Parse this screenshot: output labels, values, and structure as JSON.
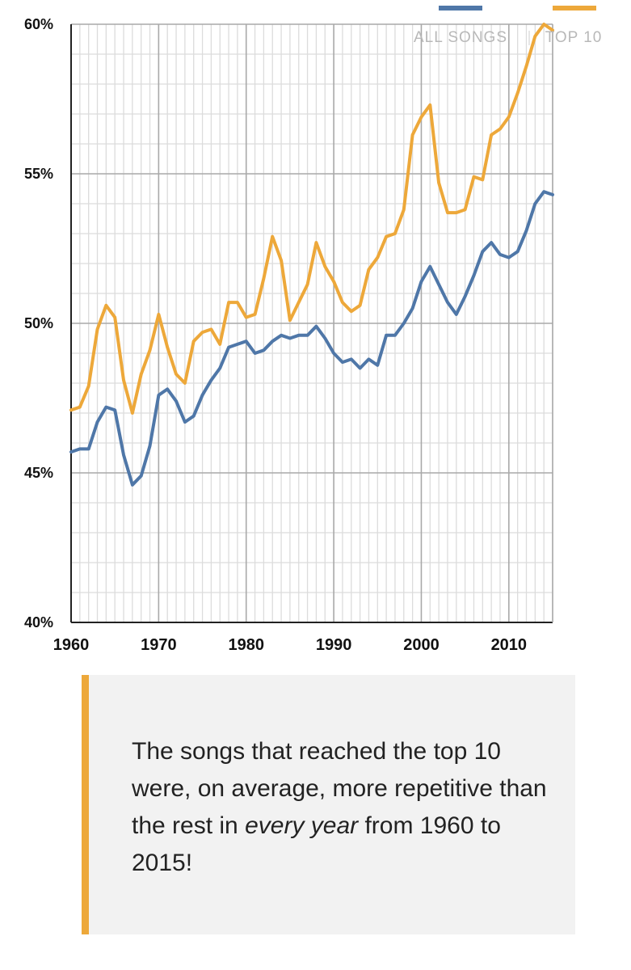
{
  "chart_data": {
    "type": "line",
    "title": "",
    "xlabel": "",
    "ylabel": "",
    "xlim": [
      1960,
      2015
    ],
    "ylim": [
      40,
      60
    ],
    "x_ticks": [
      1960,
      1970,
      1980,
      1990,
      2000,
      2010
    ],
    "x_tick_labels": [
      "1960",
      "1970",
      "1980",
      "1990",
      "2000",
      "2010"
    ],
    "y_ticks": [
      40,
      45,
      50,
      55,
      60
    ],
    "y_tick_labels": [
      "40%",
      "45%",
      "50%",
      "55%",
      "60%"
    ],
    "grid": true,
    "legend_position": "top-right",
    "x": [
      1960,
      1961,
      1962,
      1963,
      1964,
      1965,
      1966,
      1967,
      1968,
      1969,
      1970,
      1971,
      1972,
      1973,
      1974,
      1975,
      1976,
      1977,
      1978,
      1979,
      1980,
      1981,
      1982,
      1983,
      1984,
      1985,
      1986,
      1987,
      1988,
      1989,
      1990,
      1991,
      1992,
      1993,
      1994,
      1995,
      1996,
      1997,
      1998,
      1999,
      2000,
      2001,
      2002,
      2003,
      2004,
      2005,
      2006,
      2007,
      2008,
      2009,
      2010,
      2011,
      2012,
      2013,
      2014,
      2015
    ],
    "series": [
      {
        "name": "ALL SONGS",
        "color": "#4f77a8",
        "values": [
          45.7,
          45.8,
          45.8,
          46.7,
          47.2,
          47.1,
          45.6,
          44.6,
          44.9,
          45.9,
          47.6,
          47.8,
          47.4,
          46.7,
          46.9,
          47.6,
          48.1,
          48.5,
          49.2,
          49.3,
          49.4,
          49.0,
          49.1,
          49.4,
          49.6,
          49.5,
          49.6,
          49.6,
          49.9,
          49.5,
          49.0,
          48.7,
          48.8,
          48.5,
          48.8,
          48.6,
          49.6,
          49.6,
          50.0,
          50.5,
          51.4,
          51.9,
          51.3,
          50.7,
          50.3,
          50.9,
          51.6,
          52.4,
          52.7,
          52.3,
          52.2,
          52.4,
          53.1,
          54.0,
          54.4,
          54.3
        ]
      },
      {
        "name": "TOP 10",
        "color": "#eda83a",
        "values": [
          47.1,
          47.2,
          47.9,
          49.8,
          50.6,
          50.2,
          48.1,
          47.0,
          48.3,
          49.1,
          50.3,
          49.2,
          48.3,
          48.0,
          49.4,
          49.7,
          49.8,
          49.3,
          50.7,
          50.7,
          50.2,
          50.3,
          51.5,
          52.9,
          52.1,
          50.1,
          50.7,
          51.3,
          52.7,
          51.9,
          51.4,
          50.7,
          50.4,
          50.6,
          51.8,
          52.2,
          52.9,
          53.0,
          53.8,
          56.3,
          56.9,
          57.3,
          54.7,
          53.7,
          53.7,
          53.8,
          54.9,
          54.8,
          56.3,
          56.5,
          56.9,
          57.7,
          58.6,
          59.6,
          60.0,
          59.8
        ]
      }
    ]
  },
  "callout": {
    "text_before": "The songs that reached the top 10 were, on average, more repetitive than the rest in ",
    "text_emphasis": "every year",
    "text_after": " from 1960 to 2015!"
  }
}
